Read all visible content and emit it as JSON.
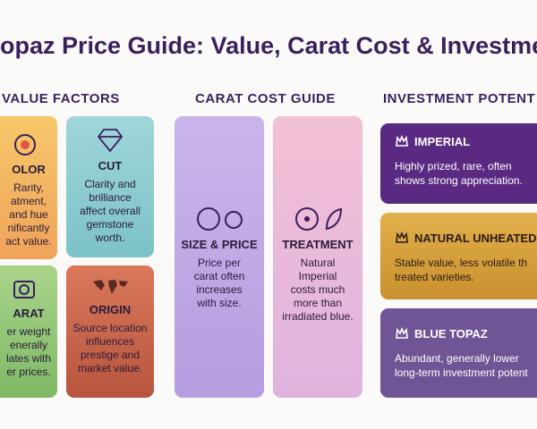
{
  "header": {
    "title": "opaz Price Guide: Value, Carat Cost & Investment"
  },
  "sections": [
    {
      "heading": "VALUE FACTORS",
      "cards": [
        {
          "title": "OLOR",
          "lines": [
            "Rarity,",
            "atment,",
            "and hue",
            "nificantly",
            "act value."
          ]
        },
        {
          "title": "CUT",
          "lines": [
            "Clarity and",
            "brilliance",
            "affect overall",
            "gemstone",
            "worth."
          ]
        },
        {
          "title": "ARAT",
          "lines": [
            "er weight",
            "enerally",
            "lates with",
            "er prices."
          ]
        },
        {
          "title": "ORIGIN",
          "lines": [
            "Source location",
            "influences",
            "prestige and",
            "market value."
          ]
        }
      ]
    },
    {
      "heading": "CARAT COST GUIDE",
      "cards": [
        {
          "title": "SIZE & PRICE",
          "lines": [
            "Price per",
            "carat often",
            "increases",
            "with size."
          ]
        },
        {
          "title": "TREATMENT",
          "lines": [
            "Natural",
            "Imperial",
            "costs much",
            "more than",
            "irradiated blue."
          ]
        }
      ]
    },
    {
      "heading": "INVESTMENT POTENT",
      "cards": [
        {
          "title": "IMPERIAL",
          "lines": [
            "Highly prized, rare, often",
            "shows strong appreciation."
          ]
        },
        {
          "title": "NATURAL UNHEATED",
          "lines": [
            "Stable value, less volatile th",
            "treated varieties."
          ]
        },
        {
          "title": "BLUE TOPAZ",
          "lines": [
            "Abundant, generally lower",
            "long-term investment potent"
          ]
        }
      ]
    }
  ]
}
